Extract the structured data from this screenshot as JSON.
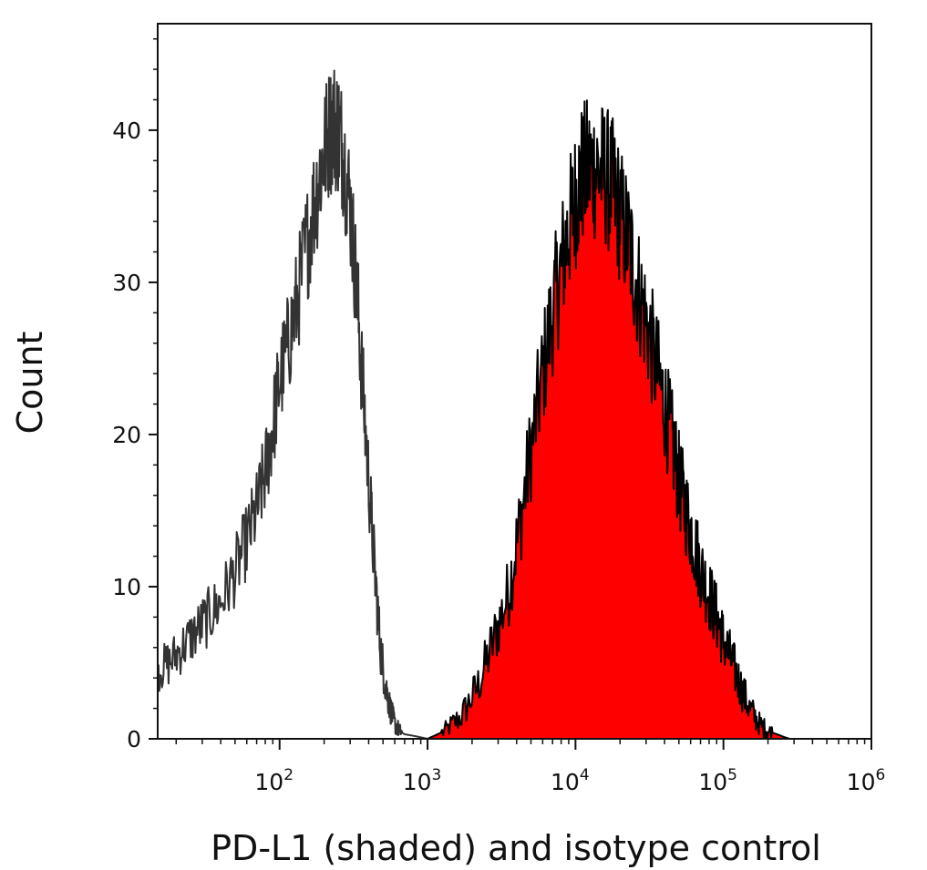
{
  "chart_data": {
    "type": "area",
    "title": "",
    "xlabel": "PD-L1 (shaded) and isotype control",
    "ylabel": "Count",
    "x_scale": "log",
    "xlim": [
      15,
      1000000
    ],
    "ylim": [
      0,
      47
    ],
    "x_ticks": [
      {
        "value": 100,
        "base": "10",
        "exp": "2"
      },
      {
        "value": 1000,
        "base": "10",
        "exp": "3"
      },
      {
        "value": 10000,
        "base": "10",
        "exp": "4"
      },
      {
        "value": 100000,
        "base": "10",
        "exp": "5"
      },
      {
        "value": 1000000,
        "base": "10",
        "exp": "6"
      }
    ],
    "y_ticks": [
      "0",
      "10",
      "20",
      "30",
      "40"
    ],
    "grid": false,
    "colors": {
      "shaded_fill": "#ff0000",
      "shaded_line": "#000000",
      "isotype_line": "#333333"
    },
    "series": [
      {
        "style": "filled",
        "x": [
          1000,
          1300,
          1700,
          2200,
          2800,
          3500,
          4200,
          5000,
          6000,
          7000,
          8000,
          9000,
          10000,
          11000,
          12500,
          14000,
          16000,
          18000,
          20000,
          23000,
          26000,
          30000,
          35000,
          40000,
          45000,
          50000,
          56000,
          63000,
          71000,
          80000,
          90000,
          100000,
          115000,
          130000,
          150000,
          175000,
          200000,
          230000,
          260000,
          280000
        ],
        "y": [
          0,
          0.5,
          1.5,
          3.5,
          6.5,
          9.5,
          14,
          19,
          24,
          28,
          31,
          33.5,
          35.5,
          37,
          37.5,
          37.5,
          37,
          36,
          34.5,
          32.5,
          30,
          27.5,
          24.5,
          22,
          19.5,
          17,
          15,
          13,
          11,
          9.5,
          8,
          6.5,
          5,
          3.5,
          2,
          1,
          0.5,
          0.3,
          0.1,
          0
        ]
      },
      {
        "style": "line",
        "x": [
          15,
          18,
          22,
          27,
          33,
          40,
          50,
          60,
          70,
          80,
          90,
          100,
          115,
          130,
          150,
          170,
          190,
          210,
          230,
          250,
          270,
          300,
          330,
          360,
          400,
          440,
          480,
          520,
          560,
          600,
          650,
          700,
          800,
          900,
          1000,
          1200
        ],
        "y": [
          4.5,
          5,
          6,
          7,
          8,
          9,
          11,
          13,
          15,
          17.5,
          20.5,
          23.5,
          26,
          28.5,
          32,
          35,
          37.5,
          39.5,
          40.5,
          40,
          38.5,
          35,
          30,
          24,
          17,
          11,
          6,
          3.5,
          2,
          1,
          0.5,
          0.3,
          0.2,
          0.1,
          0,
          0
        ]
      }
    ]
  }
}
